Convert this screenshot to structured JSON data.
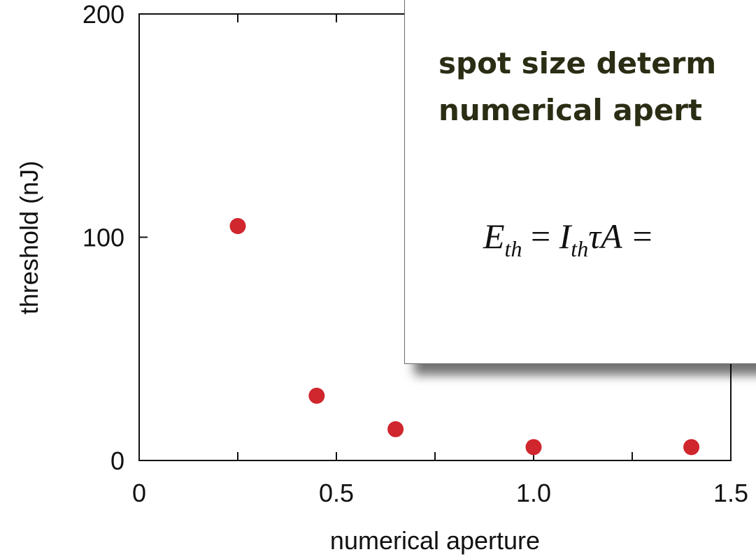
{
  "chart_data": {
    "type": "scatter",
    "xlabel": "numerical aperture",
    "ylabel": "threshold (nJ)",
    "xlim": [
      0,
      1.5
    ],
    "ylim": [
      0,
      200
    ],
    "xticks": [
      0,
      0.25,
      0.5,
      0.75,
      1.0,
      1.25,
      1.5
    ],
    "xtick_labels": [
      "0",
      "",
      "0.5",
      "",
      "1.0",
      "",
      "1.5"
    ],
    "yticks": [
      0,
      100,
      200
    ],
    "ytick_labels": [
      "0",
      "100",
      "200"
    ],
    "grid": false,
    "series": [
      {
        "x": [
          0.25,
          0.45,
          0.65,
          1.0,
          1.4
        ],
        "y": [
          105,
          29,
          14,
          6,
          6
        ],
        "color": "#d0262d"
      }
    ]
  },
  "popup": {
    "title_line1": "spot size determ",
    "title_line2": "numerical apert",
    "equation_text": "E_th = I_th τA =",
    "equation_parts": {
      "e": "E",
      "e_sub": "th",
      "eq1": " = ",
      "i": "I",
      "i_sub": "th",
      "tail": "τA = "
    }
  }
}
